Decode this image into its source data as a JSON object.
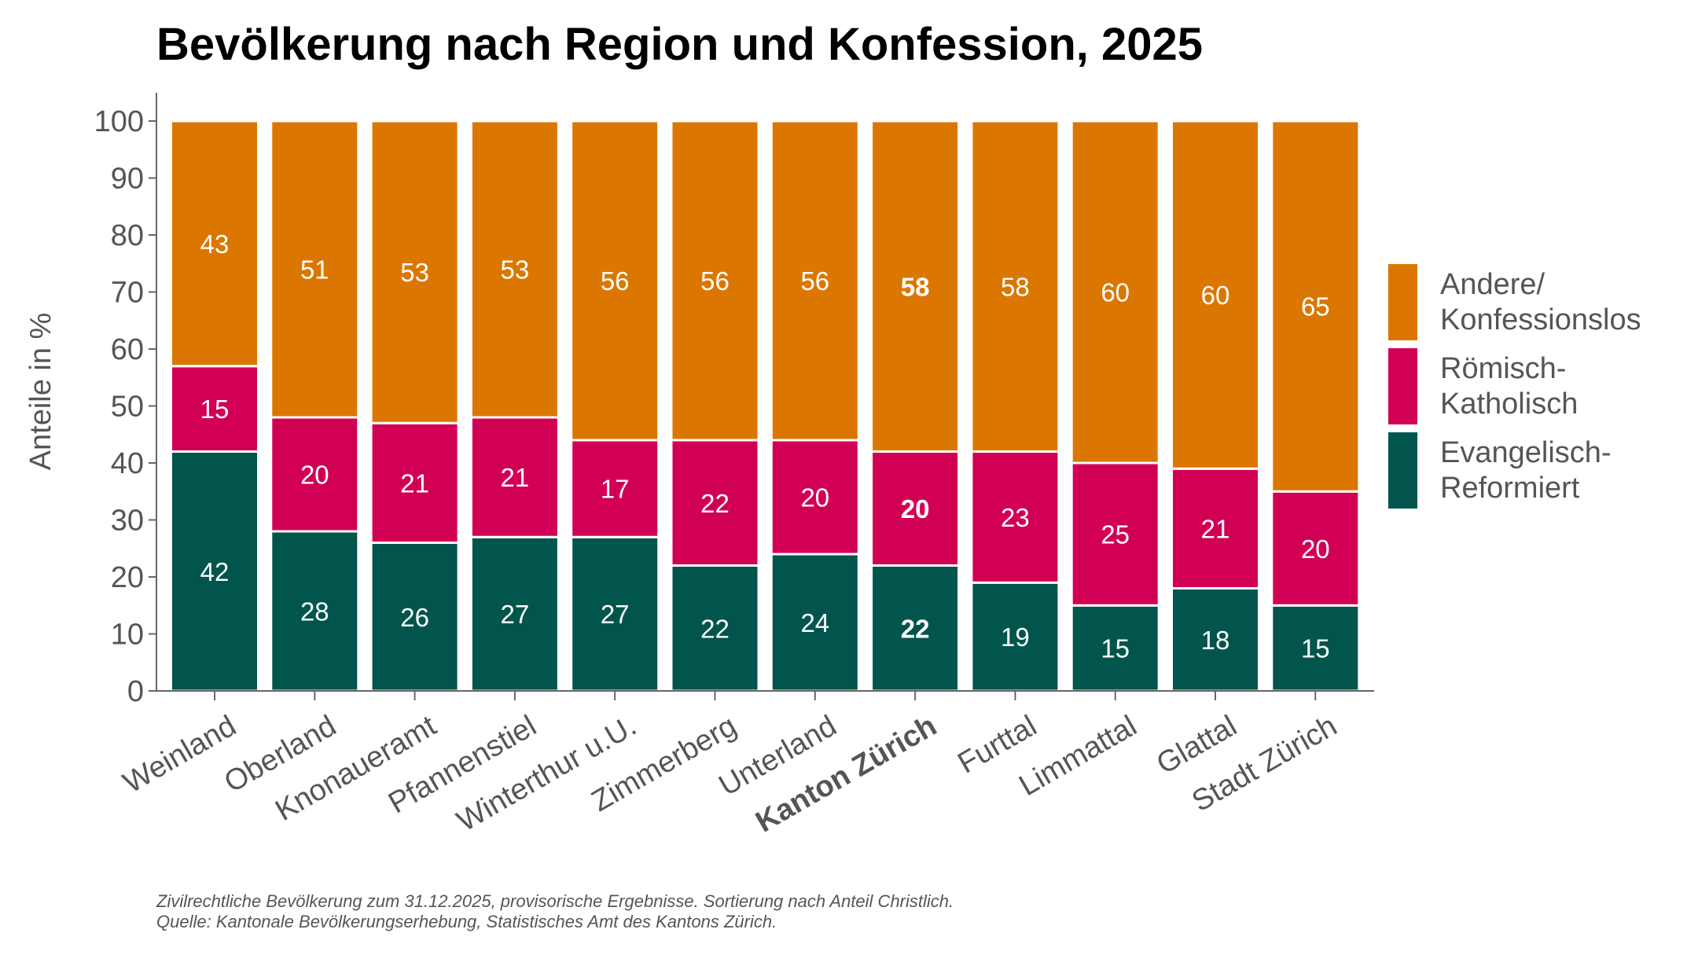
{
  "chart_data": {
    "type": "bar",
    "stacked": true,
    "title": "Bevölkerung nach Region und Konfession, 2025",
    "ylabel": "Anteile in %",
    "xlabel": "",
    "ylim": [
      0,
      100
    ],
    "yticks": [
      0,
      10,
      20,
      30,
      40,
      50,
      60,
      70,
      80,
      90,
      100
    ],
    "grid": false,
    "legend_position": "right",
    "categories": [
      "Weinland",
      "Oberland",
      "Knonaueramt",
      "Pfannenstiel",
      "Winterthur u.U.",
      "Zimmerberg",
      "Unterland",
      "Kanton Zürich",
      "Furttal",
      "Limmattal",
      "Glattal",
      "Stadt Zürich"
    ],
    "highlight_category": "Kanton Zürich",
    "series": [
      {
        "name": "Evangelisch-Reformiert",
        "legend_lines": [
          "Evangelisch-",
          "Reformiert"
        ],
        "color": "#02554C",
        "values": [
          42,
          28,
          26,
          27,
          27,
          22,
          24,
          22,
          19,
          15,
          18,
          15
        ]
      },
      {
        "name": "Römisch-Katholisch",
        "legend_lines": [
          "Römisch-",
          "Katholisch"
        ],
        "color": "#D20054",
        "values": [
          15,
          20,
          21,
          21,
          17,
          22,
          20,
          20,
          23,
          25,
          21,
          20
        ]
      },
      {
        "name": "Andere/Konfessionslos",
        "legend_lines": [
          "Andere/",
          "Konfessionslos"
        ],
        "color": "#DB7700",
        "values": [
          43,
          51,
          53,
          53,
          56,
          56,
          56,
          58,
          58,
          60,
          60,
          65
        ]
      }
    ],
    "footnote": [
      "Zivilrechtliche Bevölkerung zum 31.12.2025, provisorische Ergebnisse. Sortierung nach Anteil Christlich.",
      "Quelle: Kantonale Bevölkerungserhebung, Statistisches Amt des Kantons Zürich."
    ]
  }
}
